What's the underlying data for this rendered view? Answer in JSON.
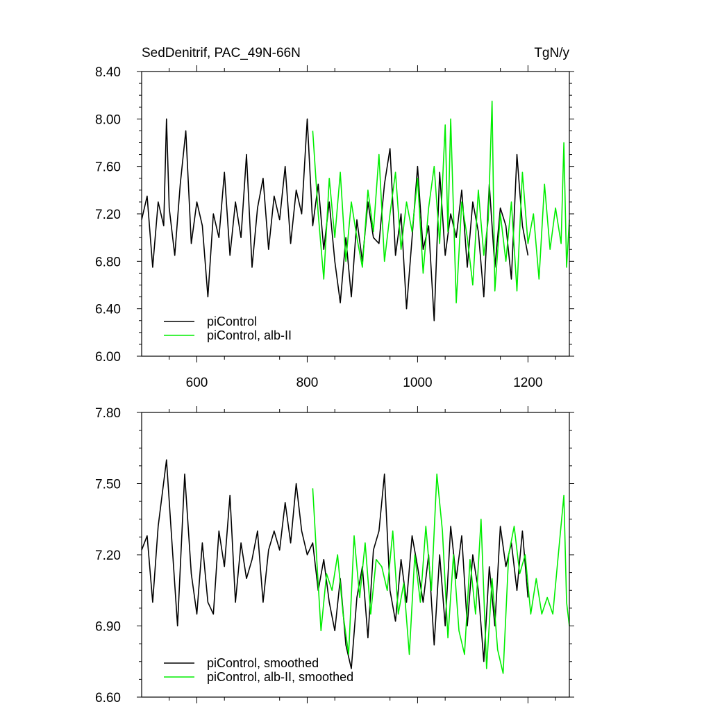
{
  "chart_data": [
    {
      "type": "line",
      "title": "SedDenitrif, PAC_49N-66N",
      "units": "TgN/y",
      "xlim": [
        500,
        1275
      ],
      "ylim": [
        6.0,
        8.4
      ],
      "x_ticks": [
        600,
        800,
        1000,
        1200
      ],
      "x_tick_labels": [
        "600",
        "800",
        "1000",
        "1200"
      ],
      "y_ticks": [
        6.0,
        6.4,
        6.8,
        7.2,
        7.6,
        8.0,
        8.4
      ],
      "y_tick_labels": [
        "6.00",
        "6.40",
        "6.80",
        "7.20",
        "7.60",
        "8.00",
        "8.40"
      ],
      "grid": false,
      "legend_position": "bottom-left",
      "series": [
        {
          "name": "piControl",
          "color": "#000000",
          "x": [
            500,
            510,
            520,
            530,
            540,
            545,
            550,
            560,
            570,
            580,
            590,
            600,
            610,
            620,
            630,
            640,
            650,
            660,
            670,
            680,
            690,
            700,
            710,
            720,
            730,
            740,
            750,
            760,
            770,
            780,
            790,
            800,
            810,
            820,
            830,
            840,
            850,
            860,
            870,
            880,
            890,
            900,
            910,
            920,
            930,
            940,
            950,
            960,
            970,
            980,
            990,
            1000,
            1010,
            1020,
            1030,
            1040,
            1050,
            1060,
            1070,
            1080,
            1090,
            1100,
            1110,
            1120,
            1130,
            1140,
            1150,
            1160,
            1170,
            1180,
            1190,
            1200
          ],
          "values": [
            7.15,
            7.35,
            6.75,
            7.3,
            7.1,
            8.0,
            7.25,
            6.85,
            7.45,
            7.9,
            6.95,
            7.3,
            7.1,
            6.5,
            7.2,
            7.0,
            7.55,
            6.85,
            7.3,
            7.0,
            7.7,
            6.75,
            7.25,
            7.5,
            6.9,
            7.35,
            7.15,
            7.6,
            6.95,
            7.4,
            7.2,
            8.0,
            7.1,
            7.45,
            6.9,
            7.3,
            6.8,
            6.45,
            7.0,
            6.5,
            7.15,
            6.8,
            7.3,
            7.0,
            6.95,
            7.45,
            7.75,
            6.85,
            7.2,
            6.4,
            7.0,
            7.6,
            6.9,
            7.1,
            6.3,
            7.55,
            6.85,
            7.2,
            7.0,
            7.4,
            6.75,
            7.3,
            7.05,
            6.5,
            7.45,
            6.75,
            7.25,
            7.1,
            6.65,
            7.7,
            7.1,
            6.85
          ]
        },
        {
          "name": "piControl, alb-II",
          "color": "#00ee00",
          "x": [
            810,
            820,
            830,
            840,
            850,
            860,
            870,
            880,
            890,
            900,
            910,
            920,
            930,
            940,
            950,
            960,
            970,
            980,
            990,
            1000,
            1010,
            1020,
            1030,
            1040,
            1050,
            1055,
            1060,
            1070,
            1080,
            1090,
            1100,
            1110,
            1120,
            1128,
            1135,
            1140,
            1150,
            1160,
            1170,
            1180,
            1190,
            1200,
            1210,
            1220,
            1230,
            1240,
            1250,
            1260,
            1265,
            1270,
            1275
          ],
          "values": [
            7.9,
            7.2,
            6.65,
            7.5,
            7.0,
            7.55,
            6.8,
            7.3,
            7.0,
            6.75,
            7.4,
            7.05,
            7.7,
            6.8,
            7.2,
            7.55,
            6.9,
            7.3,
            7.05,
            7.5,
            6.7,
            7.25,
            7.6,
            6.95,
            7.95,
            7.05,
            8.0,
            6.45,
            7.3,
            7.0,
            6.6,
            7.4,
            6.85,
            7.15,
            8.15,
            6.55,
            7.2,
            6.8,
            7.3,
            6.55,
            7.55,
            6.95,
            7.2,
            6.65,
            7.45,
            6.9,
            7.25,
            6.95,
            7.8,
            6.75,
            7.15
          ]
        }
      ]
    },
    {
      "type": "line",
      "xlim": [
        500,
        1275
      ],
      "ylim": [
        6.6,
        7.8
      ],
      "x_ticks": [
        600,
        800,
        1000,
        1200
      ],
      "y_ticks": [
        6.6,
        6.9,
        7.2,
        7.5,
        7.8
      ],
      "y_tick_labels": [
        "6.60",
        "6.90",
        "7.20",
        "7.50",
        "7.80"
      ],
      "grid": false,
      "legend_position": "bottom-left",
      "series": [
        {
          "name": "piControl, smoothed",
          "color": "#000000",
          "x": [
            500,
            510,
            520,
            530,
            545,
            555,
            565,
            578,
            590,
            600,
            610,
            620,
            630,
            640,
            650,
            660,
            670,
            680,
            690,
            700,
            710,
            720,
            730,
            740,
            750,
            760,
            770,
            780,
            790,
            800,
            810,
            820,
            830,
            840,
            850,
            860,
            870,
            880,
            890,
            900,
            910,
            920,
            930,
            940,
            950,
            960,
            970,
            980,
            990,
            1000,
            1010,
            1020,
            1030,
            1040,
            1050,
            1060,
            1070,
            1080,
            1090,
            1100,
            1110,
            1120,
            1130,
            1140,
            1150,
            1160,
            1170,
            1180,
            1190,
            1200
          ],
          "values": [
            7.22,
            7.28,
            7.0,
            7.32,
            7.6,
            7.25,
            6.9,
            7.54,
            7.12,
            6.95,
            7.25,
            7.0,
            6.95,
            7.3,
            7.15,
            7.45,
            7.0,
            7.25,
            7.1,
            7.18,
            7.3,
            7.0,
            7.22,
            7.3,
            7.22,
            7.42,
            7.25,
            7.5,
            7.3,
            7.2,
            7.25,
            7.05,
            7.18,
            7.0,
            6.88,
            7.1,
            6.82,
            6.72,
            7.02,
            7.15,
            6.85,
            7.22,
            7.3,
            7.54,
            7.05,
            6.92,
            7.18,
            7.0,
            7.28,
            7.15,
            7.0,
            7.2,
            6.82,
            7.2,
            6.9,
            7.32,
            7.1,
            7.28,
            6.9,
            7.2,
            7.05,
            6.75,
            7.15,
            6.9,
            7.32,
            7.15,
            7.25,
            7.05,
            7.3,
            7.02
          ]
        },
        {
          "name": "piControl, alb-II, smoothed",
          "color": "#00ee00",
          "x": [
            810,
            818,
            825,
            835,
            845,
            855,
            865,
            875,
            885,
            895,
            905,
            915,
            925,
            935,
            945,
            955,
            965,
            975,
            985,
            995,
            1005,
            1015,
            1025,
            1035,
            1045,
            1055,
            1065,
            1075,
            1085,
            1095,
            1105,
            1115,
            1125,
            1135,
            1145,
            1155,
            1165,
            1175,
            1185,
            1195,
            1205,
            1215,
            1225,
            1235,
            1245,
            1255,
            1265,
            1270,
            1275
          ],
          "values": [
            7.48,
            7.15,
            6.88,
            7.12,
            7.05,
            7.2,
            6.95,
            6.78,
            7.28,
            7.02,
            7.25,
            6.95,
            7.18,
            7.15,
            7.05,
            7.3,
            6.95,
            7.08,
            6.78,
            7.2,
            7.0,
            7.32,
            7.05,
            7.54,
            7.3,
            6.85,
            7.2,
            6.88,
            6.78,
            7.18,
            6.95,
            7.35,
            6.72,
            7.1,
            6.8,
            6.7,
            7.2,
            7.32,
            7.12,
            7.2,
            6.95,
            7.1,
            6.95,
            7.02,
            6.95,
            7.2,
            7.45,
            7.0,
            6.9
          ]
        }
      ]
    }
  ]
}
